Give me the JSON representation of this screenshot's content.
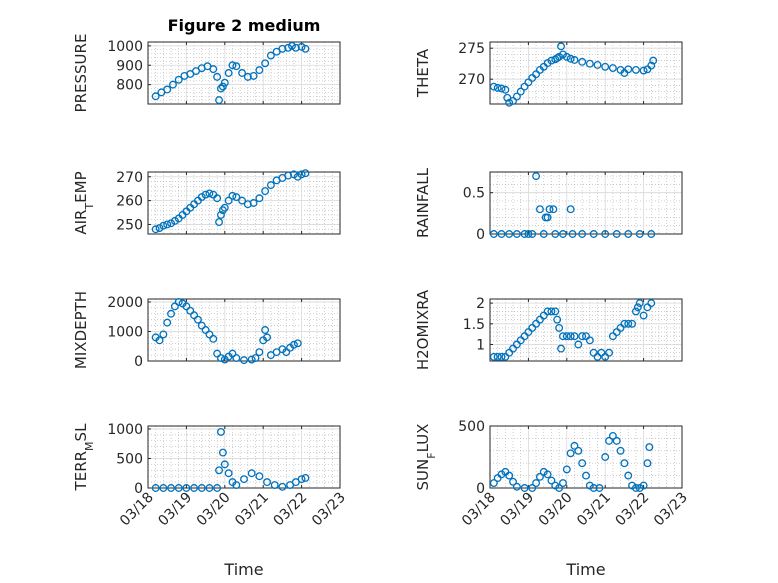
{
  "figure": {
    "title": "Figure 2 medium"
  },
  "colors": {
    "marker": "#0072BD",
    "axis": "#262626",
    "grid": "#b0b0b0"
  },
  "x_ticks": [
    "03/18",
    "03/19",
    "03/20",
    "03/21",
    "03/22",
    "03/23"
  ],
  "xlabel": "Time",
  "chart_data": [
    {
      "type": "scatter",
      "ylabel": "PRESSURE",
      "title": "Figure 2 medium",
      "xlim": [
        0,
        5
      ],
      "ylim": [
        700,
        1020
      ],
      "yticks": [
        800,
        900,
        1000
      ],
      "x_tick_labels_shown": false,
      "grid": true,
      "minor_grid": true,
      "points": [
        {
          "x": 0.2,
          "y": 740
        },
        {
          "x": 0.35,
          "y": 760
        },
        {
          "x": 0.5,
          "y": 775
        },
        {
          "x": 0.65,
          "y": 800
        },
        {
          "x": 0.8,
          "y": 825
        },
        {
          "x": 0.95,
          "y": 845
        },
        {
          "x": 1.1,
          "y": 855
        },
        {
          "x": 1.25,
          "y": 870
        },
        {
          "x": 1.4,
          "y": 885
        },
        {
          "x": 1.55,
          "y": 895
        },
        {
          "x": 1.7,
          "y": 880
        },
        {
          "x": 1.8,
          "y": 840
        },
        {
          "x": 1.85,
          "y": 720
        },
        {
          "x": 1.9,
          "y": 780
        },
        {
          "x": 1.95,
          "y": 790
        },
        {
          "x": 2.0,
          "y": 810
        },
        {
          "x": 2.1,
          "y": 860
        },
        {
          "x": 2.2,
          "y": 900
        },
        {
          "x": 2.3,
          "y": 895
        },
        {
          "x": 2.45,
          "y": 860
        },
        {
          "x": 2.6,
          "y": 840
        },
        {
          "x": 2.75,
          "y": 845
        },
        {
          "x": 2.9,
          "y": 875
        },
        {
          "x": 3.05,
          "y": 910
        },
        {
          "x": 3.2,
          "y": 950
        },
        {
          "x": 3.35,
          "y": 970
        },
        {
          "x": 3.5,
          "y": 985
        },
        {
          "x": 3.65,
          "y": 990
        },
        {
          "x": 3.75,
          "y": 1000
        },
        {
          "x": 3.85,
          "y": 990
        },
        {
          "x": 4.0,
          "y": 995
        },
        {
          "x": 4.1,
          "y": 985
        }
      ]
    },
    {
      "type": "scatter",
      "ylabel": "THETA",
      "xlim": [
        0,
        5
      ],
      "ylim": [
        266,
        276
      ],
      "yticks": [
        270,
        275
      ],
      "x_tick_labels_shown": false,
      "grid": true,
      "minor_grid": true,
      "points": [
        {
          "x": 0.1,
          "y": 268.8
        },
        {
          "x": 0.2,
          "y": 268.6
        },
        {
          "x": 0.3,
          "y": 268.5
        },
        {
          "x": 0.4,
          "y": 268.3
        },
        {
          "x": 0.45,
          "y": 267.0
        },
        {
          "x": 0.5,
          "y": 266.2
        },
        {
          "x": 0.6,
          "y": 266.5
        },
        {
          "x": 0.7,
          "y": 267.2
        },
        {
          "x": 0.8,
          "y": 268.0
        },
        {
          "x": 0.9,
          "y": 268.8
        },
        {
          "x": 1.0,
          "y": 269.5
        },
        {
          "x": 1.1,
          "y": 270.2
        },
        {
          "x": 1.2,
          "y": 270.8
        },
        {
          "x": 1.3,
          "y": 271.5
        },
        {
          "x": 1.4,
          "y": 272.0
        },
        {
          "x": 1.5,
          "y": 272.6
        },
        {
          "x": 1.6,
          "y": 273.0
        },
        {
          "x": 1.7,
          "y": 273.2
        },
        {
          "x": 1.75,
          "y": 273.4
        },
        {
          "x": 1.8,
          "y": 273.6
        },
        {
          "x": 1.85,
          "y": 275.3
        },
        {
          "x": 1.9,
          "y": 274.0
        },
        {
          "x": 2.0,
          "y": 273.6
        },
        {
          "x": 2.1,
          "y": 273.3
        },
        {
          "x": 2.2,
          "y": 273.1
        },
        {
          "x": 2.4,
          "y": 272.8
        },
        {
          "x": 2.6,
          "y": 272.5
        },
        {
          "x": 2.8,
          "y": 272.3
        },
        {
          "x": 3.0,
          "y": 272.0
        },
        {
          "x": 3.2,
          "y": 271.8
        },
        {
          "x": 3.4,
          "y": 271.5
        },
        {
          "x": 3.5,
          "y": 271.0
        },
        {
          "x": 3.6,
          "y": 271.6
        },
        {
          "x": 3.8,
          "y": 271.5
        },
        {
          "x": 4.0,
          "y": 271.4
        },
        {
          "x": 4.1,
          "y": 271.6
        },
        {
          "x": 4.2,
          "y": 272.2
        },
        {
          "x": 4.25,
          "y": 273.0
        }
      ]
    },
    {
      "type": "scatter",
      "ylabel": "AIR_TEMP",
      "ylabel_main": "AIR",
      "ylabel_sub": "T",
      "ylabel_rest": "EMP",
      "xlim": [
        0,
        5
      ],
      "ylim": [
        246,
        272
      ],
      "yticks": [
        250,
        260,
        270
      ],
      "x_tick_labels_shown": false,
      "grid": true,
      "minor_grid": true,
      "points": [
        {
          "x": 0.2,
          "y": 248
        },
        {
          "x": 0.3,
          "y": 248.5
        },
        {
          "x": 0.4,
          "y": 249.5
        },
        {
          "x": 0.5,
          "y": 250
        },
        {
          "x": 0.6,
          "y": 250.5
        },
        {
          "x": 0.7,
          "y": 251.5
        },
        {
          "x": 0.8,
          "y": 252.5
        },
        {
          "x": 0.9,
          "y": 254
        },
        {
          "x": 1.0,
          "y": 255.5
        },
        {
          "x": 1.1,
          "y": 257
        },
        {
          "x": 1.2,
          "y": 258.5
        },
        {
          "x": 1.3,
          "y": 260
        },
        {
          "x": 1.4,
          "y": 261.5
        },
        {
          "x": 1.5,
          "y": 262.5
        },
        {
          "x": 1.6,
          "y": 263
        },
        {
          "x": 1.7,
          "y": 262.5
        },
        {
          "x": 1.8,
          "y": 261
        },
        {
          "x": 1.85,
          "y": 251
        },
        {
          "x": 1.9,
          "y": 254
        },
        {
          "x": 1.95,
          "y": 256
        },
        {
          "x": 2.0,
          "y": 257
        },
        {
          "x": 2.1,
          "y": 260
        },
        {
          "x": 2.2,
          "y": 262
        },
        {
          "x": 2.3,
          "y": 261.5
        },
        {
          "x": 2.45,
          "y": 260
        },
        {
          "x": 2.6,
          "y": 258.5
        },
        {
          "x": 2.75,
          "y": 259
        },
        {
          "x": 2.9,
          "y": 261
        },
        {
          "x": 3.05,
          "y": 264
        },
        {
          "x": 3.2,
          "y": 266.5
        },
        {
          "x": 3.35,
          "y": 268.5
        },
        {
          "x": 3.5,
          "y": 269.5
        },
        {
          "x": 3.65,
          "y": 270.5
        },
        {
          "x": 3.8,
          "y": 271
        },
        {
          "x": 3.9,
          "y": 270
        },
        {
          "x": 4.0,
          "y": 271
        },
        {
          "x": 4.1,
          "y": 271.5
        }
      ]
    },
    {
      "type": "scatter",
      "ylabel": "RAINFALL",
      "xlim": [
        0,
        5
      ],
      "ylim": [
        0,
        0.75
      ],
      "yticks": [
        0,
        0.5
      ],
      "x_tick_labels_shown": false,
      "grid": true,
      "minor_grid": true,
      "points": [
        {
          "x": 0.1,
          "y": 0
        },
        {
          "x": 0.3,
          "y": 0
        },
        {
          "x": 0.5,
          "y": 0
        },
        {
          "x": 0.7,
          "y": 0
        },
        {
          "x": 0.9,
          "y": 0
        },
        {
          "x": 1.0,
          "y": 0
        },
        {
          "x": 1.1,
          "y": 0
        },
        {
          "x": 1.2,
          "y": 0.7
        },
        {
          "x": 1.3,
          "y": 0.3
        },
        {
          "x": 1.4,
          "y": 0
        },
        {
          "x": 1.45,
          "y": 0.2
        },
        {
          "x": 1.5,
          "y": 0.2
        },
        {
          "x": 1.55,
          "y": 0.3
        },
        {
          "x": 1.65,
          "y": 0.3
        },
        {
          "x": 1.7,
          "y": 0
        },
        {
          "x": 1.9,
          "y": 0
        },
        {
          "x": 2.1,
          "y": 0.3
        },
        {
          "x": 2.15,
          "y": 0
        },
        {
          "x": 2.4,
          "y": 0
        },
        {
          "x": 2.7,
          "y": 0
        },
        {
          "x": 3.0,
          "y": 0
        },
        {
          "x": 3.3,
          "y": 0
        },
        {
          "x": 3.6,
          "y": 0
        },
        {
          "x": 3.9,
          "y": 0
        },
        {
          "x": 4.2,
          "y": 0
        }
      ]
    },
    {
      "type": "scatter",
      "ylabel": "MIXDEPTH",
      "xlim": [
        0,
        5
      ],
      "ylim": [
        0,
        2100
      ],
      "yticks": [
        0,
        1000,
        2000
      ],
      "x_tick_labels_shown": false,
      "grid": true,
      "minor_grid": true,
      "points": [
        {
          "x": 0.2,
          "y": 800
        },
        {
          "x": 0.3,
          "y": 700
        },
        {
          "x": 0.4,
          "y": 900
        },
        {
          "x": 0.5,
          "y": 1300
        },
        {
          "x": 0.6,
          "y": 1600
        },
        {
          "x": 0.7,
          "y": 1850
        },
        {
          "x": 0.8,
          "y": 2000
        },
        {
          "x": 0.9,
          "y": 1950
        },
        {
          "x": 1.0,
          "y": 1850
        },
        {
          "x": 1.1,
          "y": 1700
        },
        {
          "x": 1.2,
          "y": 1550
        },
        {
          "x": 1.3,
          "y": 1400
        },
        {
          "x": 1.4,
          "y": 1200
        },
        {
          "x": 1.5,
          "y": 1050
        },
        {
          "x": 1.6,
          "y": 900
        },
        {
          "x": 1.7,
          "y": 750
        },
        {
          "x": 1.8,
          "y": 250
        },
        {
          "x": 1.9,
          "y": 100
        },
        {
          "x": 2.0,
          "y": 50
        },
        {
          "x": 2.1,
          "y": 150
        },
        {
          "x": 2.2,
          "y": 250
        },
        {
          "x": 2.3,
          "y": 100
        },
        {
          "x": 2.5,
          "y": 30
        },
        {
          "x": 2.7,
          "y": 50
        },
        {
          "x": 2.8,
          "y": 100
        },
        {
          "x": 2.9,
          "y": 300
        },
        {
          "x": 3.0,
          "y": 700
        },
        {
          "x": 3.05,
          "y": 1050
        },
        {
          "x": 3.1,
          "y": 800
        },
        {
          "x": 3.2,
          "y": 200
        },
        {
          "x": 3.35,
          "y": 300
        },
        {
          "x": 3.5,
          "y": 400
        },
        {
          "x": 3.6,
          "y": 300
        },
        {
          "x": 3.7,
          "y": 450
        },
        {
          "x": 3.8,
          "y": 550
        },
        {
          "x": 3.9,
          "y": 600
        }
      ]
    },
    {
      "type": "scatter",
      "ylabel": "H2OMIXRA",
      "xlim": [
        0,
        5
      ],
      "ylim": [
        0.6,
        2.1
      ],
      "yticks": [
        1,
        1.5,
        2
      ],
      "x_tick_labels_shown": false,
      "grid": true,
      "minor_grid": true,
      "points": [
        {
          "x": 0.1,
          "y": 0.7
        },
        {
          "x": 0.2,
          "y": 0.7
        },
        {
          "x": 0.3,
          "y": 0.7
        },
        {
          "x": 0.4,
          "y": 0.7
        },
        {
          "x": 0.5,
          "y": 0.8
        },
        {
          "x": 0.6,
          "y": 0.9
        },
        {
          "x": 0.7,
          "y": 1.0
        },
        {
          "x": 0.8,
          "y": 1.1
        },
        {
          "x": 0.9,
          "y": 1.2
        },
        {
          "x": 1.0,
          "y": 1.3
        },
        {
          "x": 1.1,
          "y": 1.4
        },
        {
          "x": 1.2,
          "y": 1.5
        },
        {
          "x": 1.3,
          "y": 1.6
        },
        {
          "x": 1.4,
          "y": 1.7
        },
        {
          "x": 1.5,
          "y": 1.8
        },
        {
          "x": 1.6,
          "y": 1.8
        },
        {
          "x": 1.7,
          "y": 1.8
        },
        {
          "x": 1.75,
          "y": 1.6
        },
        {
          "x": 1.8,
          "y": 1.4
        },
        {
          "x": 1.85,
          "y": 0.9
        },
        {
          "x": 1.9,
          "y": 1.2
        },
        {
          "x": 2.0,
          "y": 1.2
        },
        {
          "x": 2.1,
          "y": 1.2
        },
        {
          "x": 2.2,
          "y": 1.2
        },
        {
          "x": 2.3,
          "y": 1.0
        },
        {
          "x": 2.4,
          "y": 1.2
        },
        {
          "x": 2.5,
          "y": 1.2
        },
        {
          "x": 2.6,
          "y": 1.1
        },
        {
          "x": 2.7,
          "y": 0.8
        },
        {
          "x": 2.8,
          "y": 0.7
        },
        {
          "x": 2.9,
          "y": 0.8
        },
        {
          "x": 3.0,
          "y": 0.7
        },
        {
          "x": 3.1,
          "y": 0.8
        },
        {
          "x": 3.2,
          "y": 1.2
        },
        {
          "x": 3.3,
          "y": 1.3
        },
        {
          "x": 3.4,
          "y": 1.4
        },
        {
          "x": 3.5,
          "y": 1.5
        },
        {
          "x": 3.6,
          "y": 1.5
        },
        {
          "x": 3.7,
          "y": 1.5
        },
        {
          "x": 3.8,
          "y": 1.8
        },
        {
          "x": 3.85,
          "y": 1.9
        },
        {
          "x": 3.9,
          "y": 2.0
        },
        {
          "x": 4.0,
          "y": 1.7
        },
        {
          "x": 4.1,
          "y": 1.9
        },
        {
          "x": 4.2,
          "y": 2.0
        }
      ]
    },
    {
      "type": "scatter",
      "ylabel": "TERR_MSL",
      "ylabel_main": "TERR",
      "ylabel_sub": "M",
      "ylabel_rest": "SL",
      "xlim": [
        0,
        5
      ],
      "ylim": [
        0,
        1050
      ],
      "yticks": [
        0,
        500,
        1000
      ],
      "x_tick_labels_shown": true,
      "grid": true,
      "minor_grid": true,
      "points": [
        {
          "x": 0.2,
          "y": 0
        },
        {
          "x": 0.4,
          "y": 0
        },
        {
          "x": 0.6,
          "y": 0
        },
        {
          "x": 0.8,
          "y": 0
        },
        {
          "x": 1.0,
          "y": 0
        },
        {
          "x": 1.2,
          "y": 0
        },
        {
          "x": 1.4,
          "y": 0
        },
        {
          "x": 1.6,
          "y": 0
        },
        {
          "x": 1.8,
          "y": 0
        },
        {
          "x": 1.85,
          "y": 300
        },
        {
          "x": 1.9,
          "y": 950
        },
        {
          "x": 1.95,
          "y": 600
        },
        {
          "x": 2.0,
          "y": 400
        },
        {
          "x": 2.1,
          "y": 250
        },
        {
          "x": 2.2,
          "y": 100
        },
        {
          "x": 2.3,
          "y": 50
        },
        {
          "x": 2.5,
          "y": 150
        },
        {
          "x": 2.7,
          "y": 250
        },
        {
          "x": 2.9,
          "y": 200
        },
        {
          "x": 3.1,
          "y": 100
        },
        {
          "x": 3.3,
          "y": 50
        },
        {
          "x": 3.5,
          "y": 20
        },
        {
          "x": 3.7,
          "y": 50
        },
        {
          "x": 3.85,
          "y": 100
        },
        {
          "x": 4.0,
          "y": 150
        },
        {
          "x": 4.1,
          "y": 170
        }
      ]
    },
    {
      "type": "scatter",
      "ylabel": "SUN_FLUX",
      "ylabel_main": "SUN",
      "ylabel_sub": "F",
      "ylabel_rest": "LUX",
      "xlim": [
        0,
        5
      ],
      "ylim": [
        0,
        500
      ],
      "yticks": [
        0,
        500
      ],
      "x_tick_labels_shown": true,
      "grid": true,
      "minor_grid": true,
      "points": [
        {
          "x": 0.1,
          "y": 40
        },
        {
          "x": 0.2,
          "y": 80
        },
        {
          "x": 0.3,
          "y": 110
        },
        {
          "x": 0.4,
          "y": 130
        },
        {
          "x": 0.5,
          "y": 100
        },
        {
          "x": 0.6,
          "y": 50
        },
        {
          "x": 0.7,
          "y": 10
        },
        {
          "x": 0.9,
          "y": 0
        },
        {
          "x": 1.1,
          "y": 0
        },
        {
          "x": 1.2,
          "y": 40
        },
        {
          "x": 1.3,
          "y": 90
        },
        {
          "x": 1.4,
          "y": 130
        },
        {
          "x": 1.5,
          "y": 110
        },
        {
          "x": 1.6,
          "y": 60
        },
        {
          "x": 1.7,
          "y": 20
        },
        {
          "x": 1.8,
          "y": 0
        },
        {
          "x": 1.9,
          "y": 40
        },
        {
          "x": 2.0,
          "y": 150
        },
        {
          "x": 2.1,
          "y": 280
        },
        {
          "x": 2.2,
          "y": 340
        },
        {
          "x": 2.3,
          "y": 300
        },
        {
          "x": 2.4,
          "y": 200
        },
        {
          "x": 2.5,
          "y": 100
        },
        {
          "x": 2.6,
          "y": 20
        },
        {
          "x": 2.7,
          "y": 0
        },
        {
          "x": 2.85,
          "y": 0
        },
        {
          "x": 3.0,
          "y": 250
        },
        {
          "x": 3.1,
          "y": 380
        },
        {
          "x": 3.2,
          "y": 420
        },
        {
          "x": 3.3,
          "y": 380
        },
        {
          "x": 3.4,
          "y": 300
        },
        {
          "x": 3.5,
          "y": 200
        },
        {
          "x": 3.6,
          "y": 100
        },
        {
          "x": 3.7,
          "y": 20
        },
        {
          "x": 3.8,
          "y": 0
        },
        {
          "x": 3.9,
          "y": 0
        },
        {
          "x": 4.0,
          "y": 20
        },
        {
          "x": 4.1,
          "y": 200
        },
        {
          "x": 4.15,
          "y": 330
        }
      ]
    }
  ]
}
